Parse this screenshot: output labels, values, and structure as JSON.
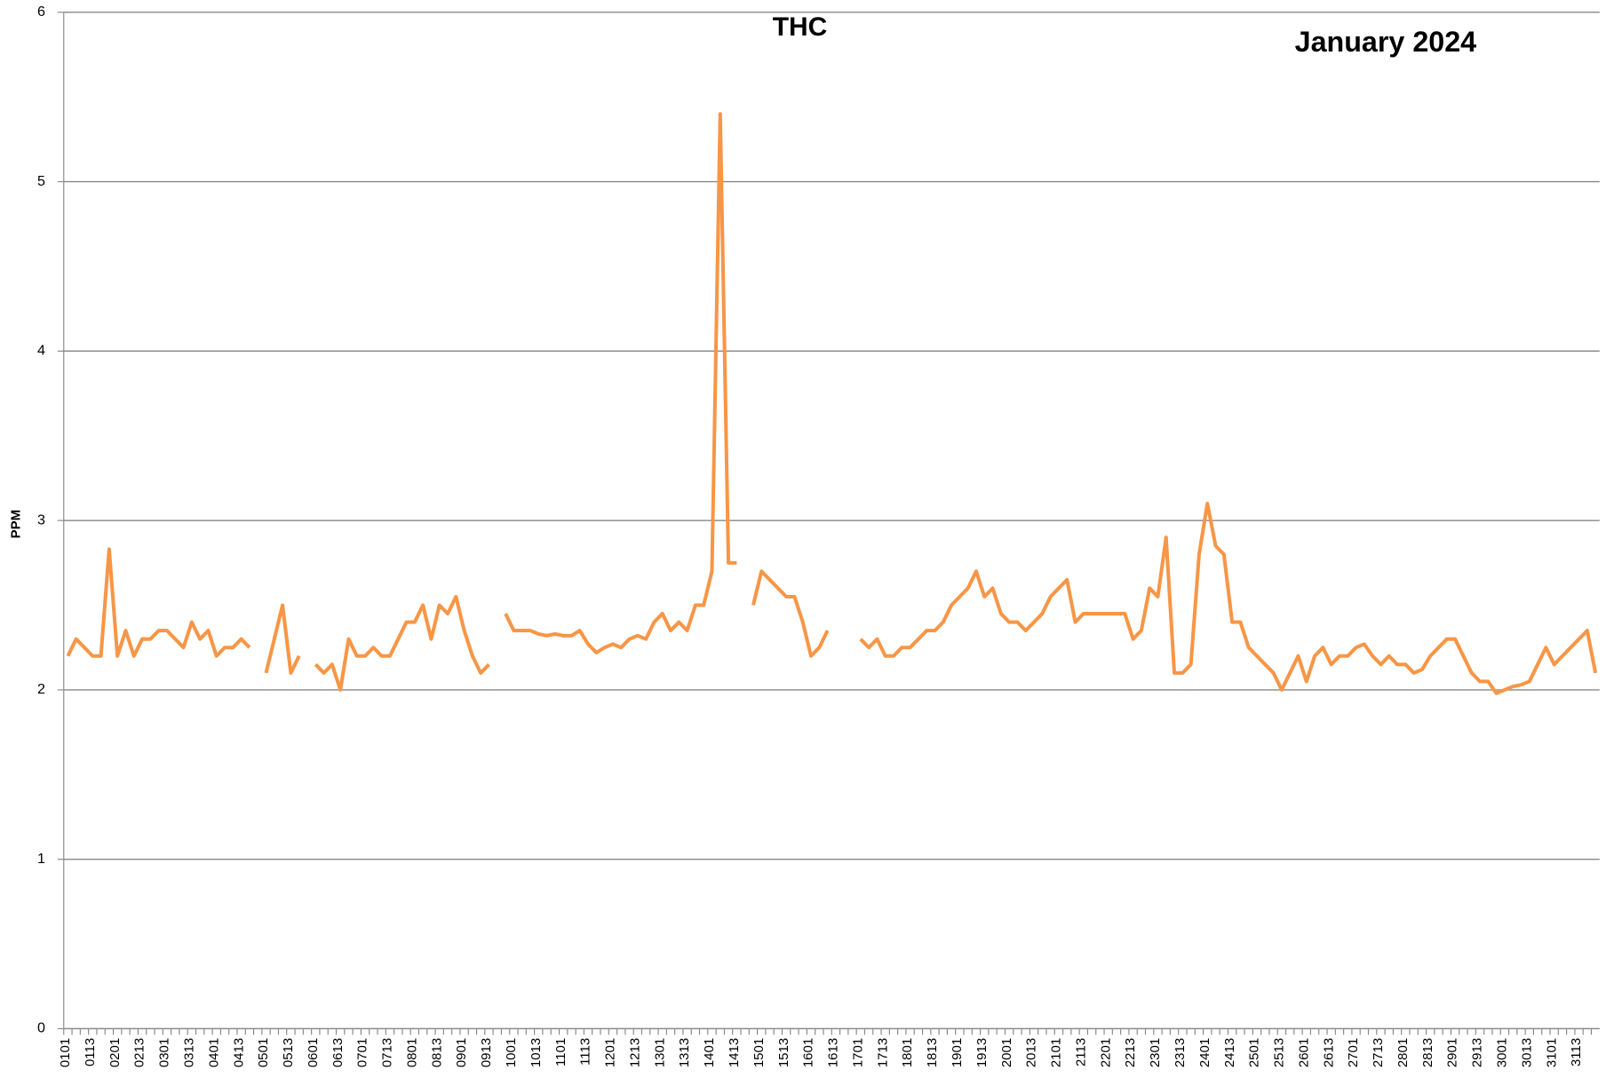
{
  "chart_data": {
    "type": "line",
    "title": "THC",
    "subtitle": "January 2024",
    "y_label": "PPM",
    "categories": [
      "0101",
      null,
      null,
      "0113",
      null,
      null,
      "0201",
      null,
      null,
      "0213",
      null,
      null,
      "0301",
      null,
      null,
      "0313",
      null,
      null,
      "0401",
      null,
      null,
      "0413",
      null,
      null,
      "0501",
      null,
      null,
      "0513",
      null,
      null,
      "0601",
      null,
      null,
      "0613",
      null,
      null,
      "0701",
      null,
      null,
      "0713",
      null,
      null,
      "0801",
      null,
      null,
      "0813",
      null,
      null,
      "0901",
      null,
      null,
      "0913",
      null,
      null,
      "1001",
      null,
      null,
      "1013",
      null,
      null,
      "1101",
      null,
      null,
      "1113",
      null,
      null,
      "1201",
      null,
      null,
      "1213",
      null,
      null,
      "1301",
      null,
      null,
      "1313",
      null,
      null,
      "1401",
      null,
      null,
      "1413",
      null,
      null,
      "1501",
      null,
      null,
      "1513",
      null,
      null,
      "1601",
      null,
      null,
      "1613",
      null,
      null,
      "1701",
      null,
      null,
      "1713",
      null,
      null,
      "1801",
      null,
      null,
      "1813",
      null,
      null,
      "1901",
      null,
      null,
      "1913",
      null,
      null,
      "2001",
      null,
      null,
      "2013",
      null,
      null,
      "2101",
      null,
      null,
      "2113",
      null,
      null,
      "2201",
      null,
      null,
      "2213",
      null,
      null,
      "2301",
      null,
      null,
      "2313",
      null,
      null,
      "2401",
      null,
      null,
      "2413",
      null,
      null,
      "2501",
      null,
      null,
      "2513",
      null,
      null,
      "2601",
      null,
      null,
      "2613",
      null,
      null,
      "2701",
      null,
      null,
      "2713",
      null,
      null,
      "2801",
      null,
      null,
      "2813",
      null,
      null,
      "2901",
      null,
      null,
      "2913",
      null,
      null,
      "3001",
      null,
      null,
      "3013",
      null,
      null,
      "3101",
      null,
      null,
      "3113",
      null,
      null
    ],
    "series": [
      {
        "name": "THC",
        "color": "#f79646",
        "values": [
          2.2,
          2.3,
          2.25,
          2.2,
          2.2,
          2.83,
          2.2,
          2.35,
          2.2,
          2.3,
          2.3,
          2.35,
          2.35,
          2.3,
          2.25,
          2.4,
          2.3,
          2.35,
          2.2,
          2.25,
          2.25,
          2.3,
          2.25,
          null,
          2.1,
          2.3,
          2.5,
          2.1,
          2.2,
          null,
          2.15,
          2.1,
          2.15,
          2.0,
          2.3,
          2.2,
          2.2,
          2.25,
          2.2,
          2.2,
          2.3,
          2.4,
          2.4,
          2.5,
          2.3,
          2.5,
          2.45,
          2.55,
          2.35,
          2.2,
          2.1,
          2.15,
          null,
          2.45,
          2.35,
          2.35,
          2.35,
          2.33,
          2.32,
          2.33,
          2.32,
          2.32,
          2.35,
          2.27,
          2.22,
          2.25,
          2.27,
          2.25,
          2.3,
          2.32,
          2.3,
          2.4,
          2.45,
          2.35,
          2.4,
          2.35,
          2.5,
          2.5,
          2.7,
          5.4,
          2.75,
          2.75,
          null,
          2.5,
          2.7,
          2.65,
          2.6,
          2.55,
          2.55,
          2.4,
          2.2,
          2.25,
          2.35,
          null,
          2.4,
          null,
          2.3,
          2.25,
          2.3,
          2.2,
          2.2,
          2.25,
          2.25,
          2.3,
          2.35,
          2.35,
          2.4,
          2.5,
          2.55,
          2.6,
          2.7,
          2.55,
          2.6,
          2.45,
          2.4,
          2.4,
          2.35,
          2.4,
          2.45,
          2.55,
          2.6,
          2.65,
          2.4,
          2.45,
          2.45,
          2.45,
          2.45,
          2.45,
          2.45,
          2.3,
          2.35,
          2.6,
          2.55,
          2.9,
          2.1,
          2.1,
          2.15,
          2.8,
          3.1,
          2.85,
          2.8,
          2.4,
          2.4,
          2.25,
          2.2,
          2.15,
          2.1,
          2.0,
          2.1,
          2.2,
          2.05,
          2.2,
          2.25,
          2.15,
          2.2,
          2.2,
          2.25,
          2.27,
          2.2,
          2.15,
          2.2,
          2.15,
          2.15,
          2.1,
          2.12,
          2.2,
          2.25,
          2.3,
          2.3,
          2.2,
          2.1,
          2.05,
          2.05,
          1.98,
          2.0,
          2.02,
          2.03,
          2.05,
          2.15,
          2.25,
          2.15,
          2.2,
          2.25,
          2.3,
          2.35,
          2.1
        ]
      }
    ],
    "ylim": [
      0,
      6
    ],
    "yticks": [
      0,
      1,
      2,
      3,
      4,
      5,
      6
    ],
    "grid": true
  }
}
